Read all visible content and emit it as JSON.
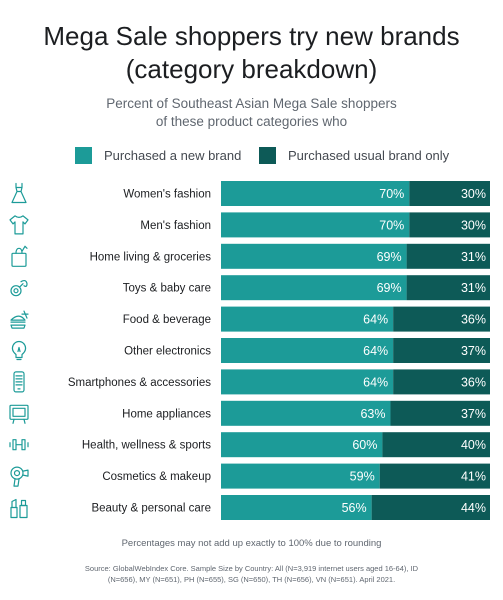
{
  "title_line1": "Mega Sale shoppers try new brands",
  "title_line2": "(category breakdown)",
  "subtitle_line1": "Percent of Southeast Asian Mega Sale shoppers",
  "subtitle_line2": "of these product categories who",
  "footnote": "Percentages may not add up exactly to 100% due to rounding",
  "source_line1": "Source: GlobalWebIndex Core. Sample Size by Country: All (N=3,919 internet users aged 16-64), ID",
  "source_line2": "(N=656), MY (N=651), PH (N=655), SG (N=650), TH (N=656), VN (N=651). April 2021.",
  "colors": {
    "new_brand": "#1c9b98",
    "usual_brand": "#0d5a57"
  },
  "chart_data": {
    "type": "bar",
    "orientation": "horizontal",
    "stacked": true,
    "xlim": [
      0,
      100
    ],
    "legend_placement": "top",
    "categories": [
      "Women's fashion",
      "Men's fashion",
      "Home living & groceries",
      "Toys & baby care",
      "Food & beverage",
      "Other electronics",
      "Smartphones & accessories",
      "Home appliances",
      "Health, wellness & sports",
      "Cosmetics & makeup",
      "Beauty & personal care"
    ],
    "icons": [
      "dress-icon",
      "shirt-icon",
      "grocery-bag-icon",
      "pacifier-icon",
      "burger-icon",
      "lightbulb-icon",
      "smartphone-icon",
      "tv-icon",
      "dumbbell-icon",
      "hairdryer-icon",
      "lipstick-icon"
    ],
    "series": [
      {
        "name": "Purchased a new brand",
        "values": [
          70,
          70,
          69,
          69,
          64,
          64,
          64,
          63,
          60,
          59,
          56
        ],
        "labels": [
          "70%",
          "70%",
          "69%",
          "69%",
          "64%",
          "64%",
          "64%",
          "63%",
          "60%",
          "59%",
          "56%"
        ]
      },
      {
        "name": "Purchased usual brand only",
        "values": [
          30,
          30,
          31,
          31,
          36,
          37,
          36,
          37,
          40,
          41,
          44
        ],
        "labels": [
          "30%",
          "30%",
          "31%",
          "31%",
          "36%",
          "37%",
          "36%",
          "37%",
          "40%",
          "41%",
          "44%"
        ]
      }
    ]
  }
}
